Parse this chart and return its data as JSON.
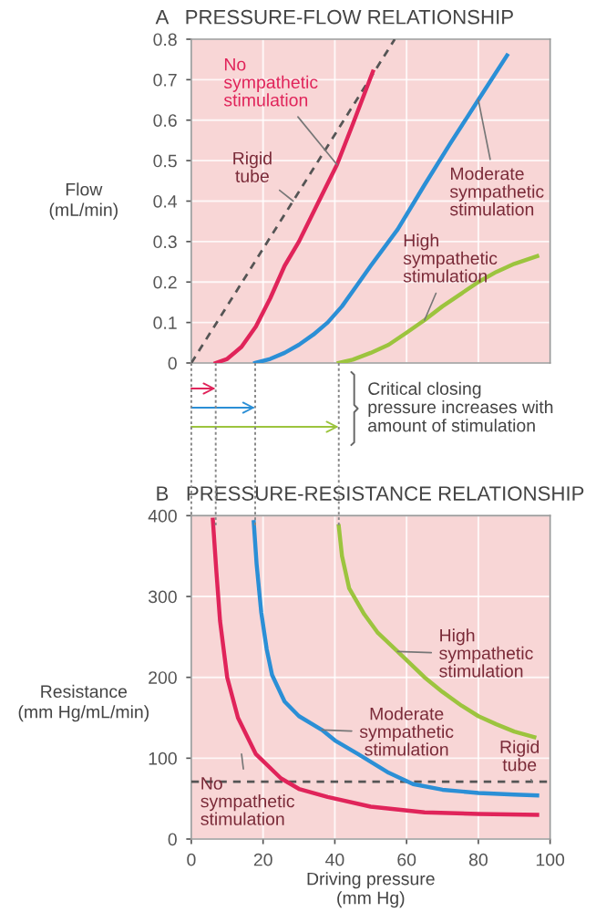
{
  "chart_data": [
    {
      "type": "line",
      "title": "A   PRESSURE-FLOW RELATIONSHIP",
      "ylabel": "Flow\n(mL/min)",
      "xlim": [
        0,
        100
      ],
      "xticks": [
        0,
        20,
        40,
        60,
        80,
        100
      ],
      "ylim": [
        0,
        0.8
      ],
      "yticks": [
        0,
        0.1,
        0.2,
        0.3,
        0.4,
        0.5,
        0.6,
        0.7,
        0.8
      ],
      "tick_labels": "y",
      "grid": true,
      "legend": false,
      "marker": "none",
      "series": [
        {
          "name": "Rigid tube",
          "color": "#555555",
          "line_style": "dashed",
          "x": [
            0,
            56.7
          ],
          "values": [
            0,
            0.8
          ]
        },
        {
          "name": "No sympathetic stimulation",
          "color": "#e0245a",
          "x": [
            6.8,
            10,
            14,
            18,
            22,
            26,
            30,
            35,
            40.6,
            45,
            50.6
          ],
          "values": [
            0,
            0.01,
            0.04,
            0.09,
            0.16,
            0.24,
            0.3,
            0.39,
            0.49,
            0.59,
            0.72
          ]
        },
        {
          "name": "Moderate sympathetic stimulation",
          "color": "#2b8fd6",
          "x": [
            17.8,
            22,
            26,
            30,
            34,
            38,
            42,
            46,
            50,
            57.5,
            65,
            72,
            80,
            88
          ],
          "values": [
            0,
            0.01,
            0.025,
            0.045,
            0.07,
            0.1,
            0.14,
            0.19,
            0.24,
            0.33,
            0.44,
            0.54,
            0.65,
            0.76
          ]
        },
        {
          "name": "High sympathetic stimulation",
          "color": "#9cc43e",
          "x": [
            41.1,
            45,
            50,
            55,
            60,
            65,
            70,
            75,
            80,
            85,
            90,
            96.4
          ],
          "values": [
            0,
            0.008,
            0.025,
            0.045,
            0.075,
            0.106,
            0.14,
            0.17,
            0.2,
            0.225,
            0.245,
            0.264
          ]
        }
      ],
      "annotations": [
        "Critical closing\npressure increases with\namount of stimulation"
      ]
    },
    {
      "type": "line",
      "title": "B   PRESSURE-RESISTANCE RELATIONSHIP",
      "xlabel": "Driving pressure\n(mm Hg)",
      "ylabel": "Resistance\n(mm Hg/mL/min)",
      "xlim": [
        0,
        100
      ],
      "xticks": [
        0,
        20,
        40,
        60,
        80,
        100
      ],
      "ylim": [
        0,
        400
      ],
      "yticks": [
        0,
        100,
        200,
        300,
        400
      ],
      "grid": true,
      "legend": false,
      "marker": "none",
      "series": [
        {
          "name": "Rigid tube",
          "color": "#555555",
          "line_style": "dashed",
          "x": [
            0,
            100
          ],
          "values": [
            71,
            71
          ]
        },
        {
          "name": "No sympathetic stimulation",
          "color": "#e0245a",
          "x": [
            6,
            7,
            8,
            10,
            13,
            18,
            25,
            30,
            38,
            50,
            65,
            80,
            96.4
          ],
          "values": [
            395,
            330,
            270,
            200,
            150,
            105,
            75,
            62,
            52,
            40,
            33,
            31,
            30
          ]
        },
        {
          "name": "Moderate sympathetic stimulation",
          "color": "#2b8fd6",
          "x": [
            17.4,
            18.2,
            19.5,
            21,
            22.5,
            26,
            30,
            36.4,
            40,
            46.5,
            55,
            61.8,
            70,
            80,
            90,
            96.4
          ],
          "values": [
            392,
            340,
            280,
            235,
            203,
            170,
            152,
            135,
            122,
            105,
            82,
            68,
            61,
            57,
            55,
            54
          ]
        },
        {
          "name": "High sympathetic stimulation",
          "color": "#9cc43e",
          "x": [
            41.1,
            42,
            44,
            48.2,
            52,
            57.5,
            65,
            70,
            75.3,
            80,
            85,
            90,
            95.6
          ],
          "values": [
            387,
            350,
            310,
            278,
            255,
            232,
            200,
            182,
            165,
            152,
            142,
            133,
            126
          ]
        }
      ]
    }
  ]
}
